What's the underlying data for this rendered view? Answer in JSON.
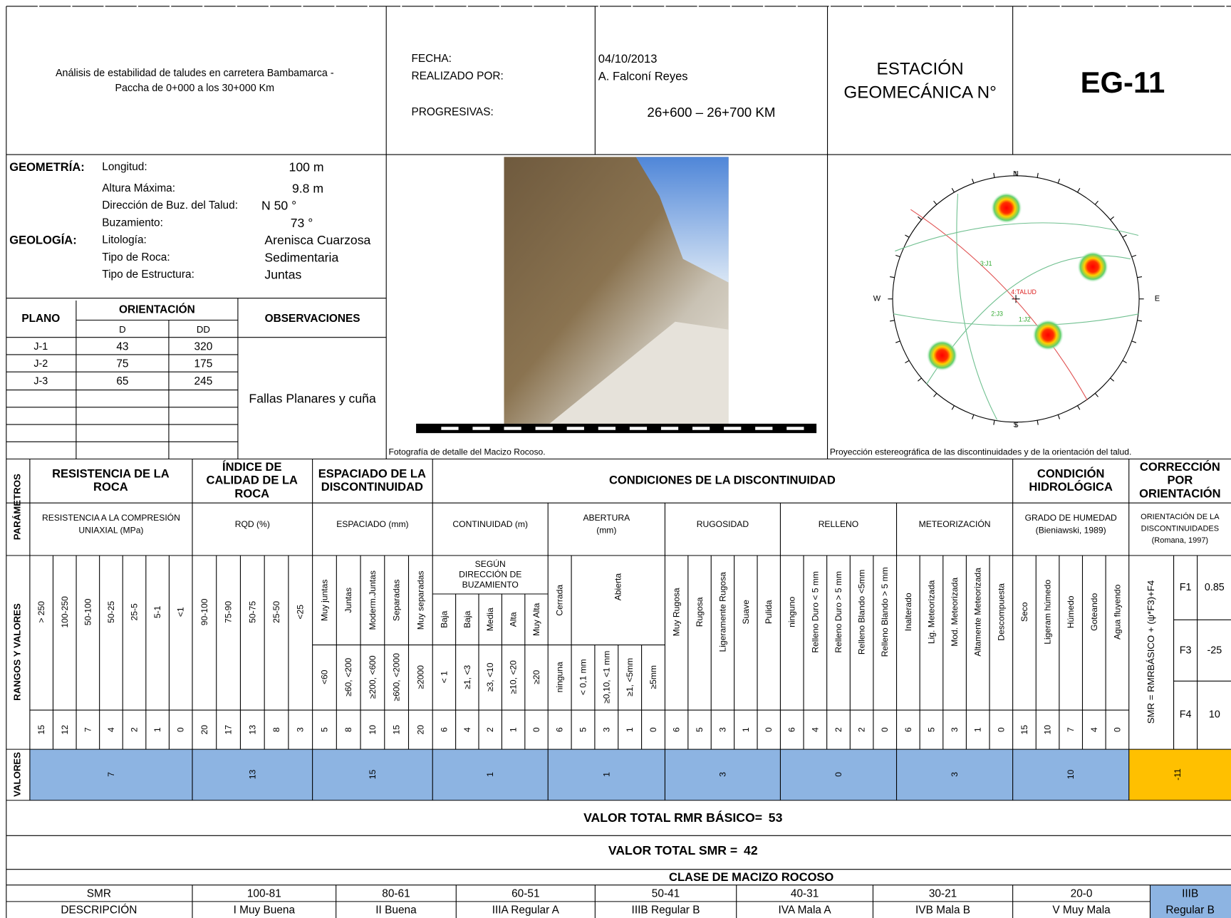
{
  "header": {
    "title": [
      "Análisis de estabilidad de taludes en carretera Bambamarca -",
      "Paccha de 0+000 a los 30+000 Km"
    ],
    "fields": [
      {
        "label": "FECHA:",
        "value": "04/10/2013"
      },
      {
        "label": "REALIZADO POR:",
        "value": "A. Falconí Reyes"
      },
      {
        "label": "PROGRESIVAS:",
        "value": "26+600 – 26+700 KM"
      }
    ],
    "station_label": [
      "ESTACIÓN",
      "GEOMECÁNICA N°"
    ],
    "station": "EG-11"
  },
  "geometria": {
    "label": "GEOMETRÍA:",
    "rows": [
      [
        "Longitud:",
        "100 m"
      ],
      [
        "Altura Máxima:",
        "9.8 m"
      ],
      [
        "Dirección de Buz. del Talud:",
        "N  50 °"
      ],
      [
        "Buzamiento:",
        "73 °"
      ]
    ]
  },
  "geologia": {
    "label": "GEOLOGÍA:",
    "rows": [
      [
        "Litología:",
        "Arenisca Cuarzosa"
      ],
      [
        "Tipo de Roca:",
        "Sedimentaria"
      ],
      [
        "Tipo de Estructura:",
        "Juntas"
      ]
    ]
  },
  "planes": {
    "headers": {
      "plane": "PLANO",
      "orientation": "ORIENTACIÓN",
      "d": "D",
      "dd": "DD",
      "observations": "OBSERVACIONES"
    },
    "rows": [
      [
        "J-1",
        43,
        320
      ],
      [
        "J-2",
        75,
        175
      ],
      [
        "J-3",
        65,
        245
      ]
    ],
    "observation": "Fallas Planares y cuña"
  },
  "photo": {
    "caption": "Fotografía de detalle del Macizo Rocoso."
  },
  "stereonet": {
    "caption": "Proyección estereográfica de las discontinuidades y de la orientación del talud.",
    "directions": [
      "N",
      "E",
      "S",
      "W"
    ],
    "labels": [
      "3:J1",
      "4:TALUD",
      "2:J3",
      "1:J2"
    ]
  },
  "rmr": {
    "axis_labels": [
      "PARÁMETROS",
      "RANGOS Y VALORES",
      "VALORES"
    ],
    "titles": [
      [
        "RESISTENCIA DE LA",
        "ROCA"
      ],
      [
        "ÍNDICE DE",
        "CALIDAD DE LA",
        "ROCA"
      ],
      [
        "ESPACIADO DE LA",
        "DISCONTINUIDAD"
      ],
      [
        "CONDICIONES DE LA DISCONTINUIDAD"
      ],
      [
        "CONDICIÓN",
        "HIDROLÓGICA"
      ],
      [
        "CORRECCIÓN",
        "POR",
        "ORIENTACIÓN"
      ]
    ],
    "groups": [
      {
        "subtitle": [
          "RESISTENCIA A LA COMPRESIÓN",
          "UNIAXIAL (MPa)"
        ],
        "ranges": [
          "> 250",
          "100-250",
          "50-100",
          "50-25",
          "25-5",
          "5-1",
          "<1"
        ],
        "ratings": [
          15,
          12,
          7,
          4,
          2,
          1,
          0
        ],
        "value": 7
      },
      {
        "subtitle": [
          "RQD (%)"
        ],
        "ranges": [
          "90-100",
          "75-90",
          "50-75",
          "25-50",
          "<25"
        ],
        "ratings": [
          20,
          17,
          13,
          8,
          3
        ],
        "value": 13
      },
      {
        "subtitle": [
          "ESPACIADO (mm)"
        ],
        "ranges": [
          "Muy juntas",
          "Juntas",
          "Moderm.Juntas",
          "Separadas",
          "Muy separadas"
        ],
        "ranges_lower": [
          "<60",
          "≥60, <200",
          "≥200, <600",
          "≥600, <2000",
          "≥2000"
        ],
        "ratings": [
          5,
          8,
          10,
          15,
          20
        ],
        "value": 15
      },
      {
        "subtitle": [
          "CONTINUIDAD (m)"
        ],
        "ranges_header": [
          "SEGÚN",
          "DIRECCIÓN DE",
          "BUZAMIENTO"
        ],
        "ranges": [
          "Baja",
          "Baja",
          "Media",
          "Alta",
          "Muy Alta"
        ],
        "ranges_lower": [
          "< 1",
          "≥1, <3",
          "≥3, <10",
          "≥10, <20",
          "≥20"
        ],
        "ratings": [
          6,
          4,
          2,
          1,
          0
        ],
        "value": 1
      },
      {
        "subtitle": [
          "ABERTURA",
          "(mm)"
        ],
        "ranges": [
          "Cerrada",
          "Abierta"
        ],
        "ranges_lower": [
          "ninguna",
          "< 0,1 mm",
          "≥0,10, <1 mm",
          "≥1, <5mm",
          "≥5mm"
        ],
        "ratings": [
          6,
          5,
          3,
          1,
          0
        ],
        "value": 1
      },
      {
        "subtitle": [
          "RUGOSIDAD"
        ],
        "ranges": [
          "Muy Rugosa",
          "Rugosa",
          "Ligeramente Rugosa",
          "Suave",
          "Pulida"
        ],
        "ratings": [
          6,
          5,
          3,
          1,
          0
        ],
        "value": 3
      },
      {
        "subtitle": [
          "RELLENO"
        ],
        "ranges": [
          "ninguno",
          "Relleno Duro < 5 mm",
          "Relleno Duro > 5 mm",
          "Relleno Blando <5mm",
          "Relleno Blando > 5 mm"
        ],
        "ratings": [
          6,
          4,
          2,
          2,
          0
        ],
        "value": 0
      },
      {
        "subtitle": [
          "METEORIZACIÓN"
        ],
        "ranges": [
          "Inalterado",
          "Lig. Meteorizada",
          "Mod. Meteorizada",
          "Altamente Meteorizada",
          "Descompuesta"
        ],
        "ratings": [
          6,
          5,
          3,
          1,
          0
        ],
        "value": 3
      },
      {
        "subtitle": [
          "GRADO DE HUMEDAD",
          "(Bieniawski, 1989)"
        ],
        "ranges": [
          "Seco",
          "Ligeram húmedo",
          "Húmedo",
          "Goteando",
          "Agua fluyendo"
        ],
        "ratings": [
          15,
          10,
          7,
          4,
          0
        ],
        "value": 10
      }
    ],
    "correction": {
      "subtitle": [
        "ORIENTACIÓN DE LA",
        "DISCONTINUIDADES",
        "(Romana, 1997)"
      ],
      "formula": "SMR = RMRBÁSICO + (ψ*F3)+F4",
      "factors": [
        [
          "F1",
          0.85
        ],
        [
          "F3",
          -25
        ],
        [
          "F4",
          10
        ]
      ],
      "value": -11
    }
  },
  "totals": [
    {
      "label": "VALOR TOTAL RMR BÁSICO=",
      "value": 53
    },
    {
      "label": "VALOR TOTAL SMR =",
      "value": 42
    }
  ],
  "classes": {
    "title": "CLASE DE MACIZO ROCOSO",
    "row_labels": [
      "SMR",
      "DESCRIPCIÓN"
    ],
    "ranges": [
      "100-81",
      "80-61",
      "60-51",
      "50-41",
      "40-31",
      "30-21",
      "20-0"
    ],
    "descriptions": [
      "I Muy Buena",
      "II Buena",
      "IIIA Regular A",
      "IIIB Regular B",
      "IVA Mala A",
      "IVB Mala B",
      "V Muy Mala"
    ],
    "result": [
      "IIIB",
      "Regular B"
    ]
  }
}
